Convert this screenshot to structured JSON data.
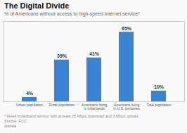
{
  "chart_data": {
    "type": "bar",
    "title": "The Digital Divide",
    "subtitle": "% of Americans without access to high-speed internet service*",
    "categories": [
      "Urban population",
      "Rural population",
      "Americans living\nin tribal lands",
      "Americans living\nin U.S. territories",
      "Total population"
    ],
    "values": [
      4,
      39,
      41,
      65,
      10
    ],
    "value_labels": [
      "4%",
      "39%",
      "41%",
      "65%",
      "10%"
    ],
    "color": "#3a82d4",
    "ylim": [
      0,
      75
    ],
    "tick_labels": "x",
    "data_labels": true,
    "annotations": [
      "* Fixed broadband service with at least 25 Mbps download and 3 Mbps upload",
      "Source: FCC",
      "statista"
    ]
  }
}
